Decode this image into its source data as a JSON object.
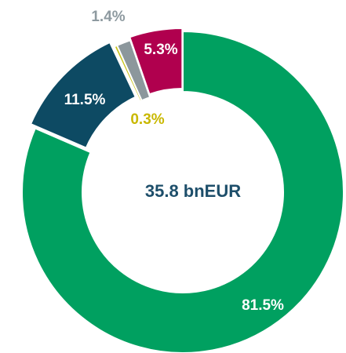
{
  "chart_data": {
    "type": "donut",
    "center_label": "35.8 bnEUR",
    "series": [
      {
        "name": null,
        "color": "#00a060",
        "values": [
          81.5,
          11.5,
          0.3,
          1.4,
          5.3
        ],
        "value_labels": [
          "81.5%",
          "11.5%",
          "0.3%",
          "1.4%",
          "5.3%"
        ],
        "colors": [
          "#00a060",
          "#0d4a63",
          "#c9c41a",
          "#8c979c",
          "#b0004e"
        ]
      }
    ]
  }
}
